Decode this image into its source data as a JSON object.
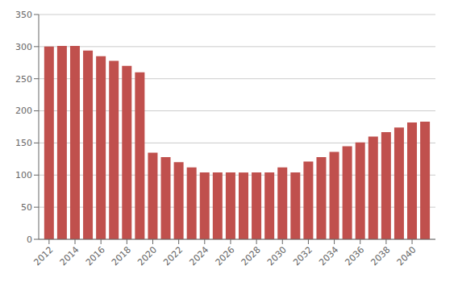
{
  "chart_data": {
    "type": "bar",
    "x": [
      2012,
      2013,
      2014,
      2015,
      2016,
      2017,
      2018,
      2019,
      2020,
      2021,
      2022,
      2023,
      2024,
      2025,
      2026,
      2027,
      2028,
      2029,
      2030,
      2031,
      2032,
      2033,
      2034,
      2035,
      2036,
      2037,
      2038,
      2039,
      2040,
      2041
    ],
    "values": [
      300,
      301,
      301,
      294,
      285,
      278,
      270,
      260,
      135,
      128,
      120,
      112,
      104,
      104,
      104,
      104,
      104,
      104,
      112,
      104,
      121,
      128,
      136,
      145,
      151,
      160,
      167,
      174,
      182,
      183
    ],
    "color": "#c0504d",
    "xlim": [
      2011.2,
      2041.8
    ],
    "xticks": [
      2012,
      2014,
      2016,
      2018,
      2020,
      2022,
      2024,
      2026,
      2028,
      2030,
      2032,
      2034,
      2036,
      2038,
      2040
    ],
    "ylim": [
      0,
      350
    ],
    "yticks": [
      0,
      50,
      100,
      150,
      200,
      250,
      300,
      350
    ],
    "grid": true
  }
}
